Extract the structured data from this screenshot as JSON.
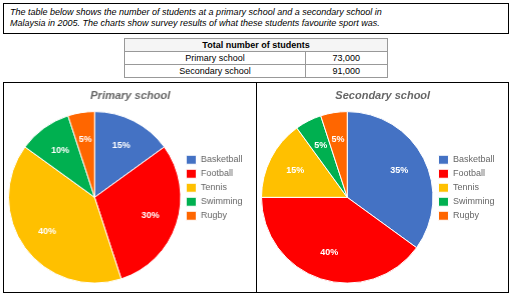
{
  "title": "The table below shows the number of students at a primary school and a secondary school in\nMalaysia in 2005. The charts show survey results of what these students favourite sport was.",
  "table": {
    "header": "Total number of students",
    "rows": [
      {
        "name": "Primary school",
        "value": 73000,
        "label": "73,000"
      },
      {
        "name": "Secondary school",
        "value": 91000,
        "label": "91,000"
      }
    ]
  },
  "chart_data": [
    {
      "type": "pie",
      "title": "Primary school",
      "categories": [
        "Basketball",
        "Football",
        "Tennis",
        "Swimming",
        "Rugby"
      ],
      "values": [
        15,
        30,
        40,
        10,
        5
      ],
      "value_labels": [
        "15%",
        "30%",
        "40%",
        "10%",
        "5%"
      ],
      "colors": [
        "#4472C4",
        "#FF0000",
        "#FFC000",
        "#00B050",
        "#FF6600"
      ],
      "data_labels": true,
      "legend": "right"
    },
    {
      "type": "pie",
      "title": "Secondary school",
      "categories": [
        "Basketball",
        "Football",
        "Tennis",
        "Swimming",
        "Rugby"
      ],
      "values": [
        35,
        40,
        15,
        5,
        5
      ],
      "value_labels": [
        "35%",
        "40%",
        "15%",
        "5%",
        "5%"
      ],
      "colors": [
        "#4472C4",
        "#FF0000",
        "#FFC000",
        "#00B050",
        "#FF6600"
      ],
      "data_labels": true,
      "legend": "right"
    }
  ]
}
